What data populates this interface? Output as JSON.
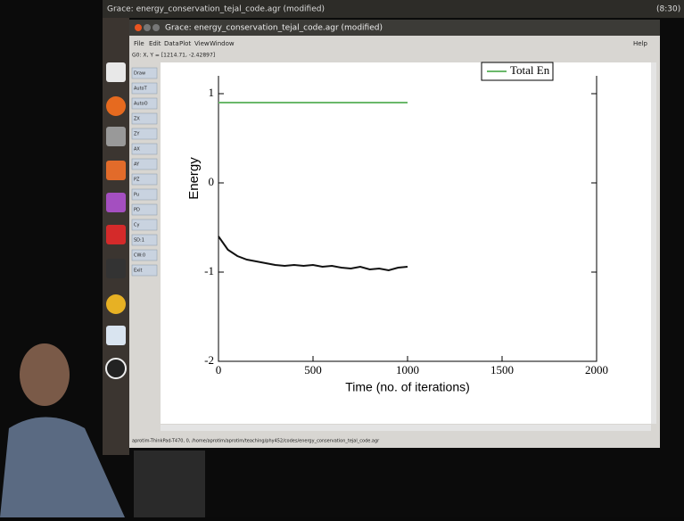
{
  "topbar": {
    "title": "Grace: energy_conservation_tejal_code.agr (modified)",
    "clock": "(8:30)"
  },
  "window": {
    "title": "Grace: energy_conservation_tejal_code.agr (modified)",
    "menu": [
      "File",
      "Edit",
      "Data",
      "Plot",
      "View",
      "Window"
    ],
    "help": "Help",
    "coords": "G0: X, Y = [1214.71, -2.42897]",
    "status": "aprotim-ThinkPad-T470, 0, /home/aprotim/aprotim/teaching/phy452/codes/energy_conservation_tejal_code.agr"
  },
  "toolbar": [
    "Draw",
    "AutoT",
    "AutoO",
    "ZX",
    "ZY",
    "AX",
    "AY",
    "PZ",
    "Pu",
    "PD",
    "Cy",
    "SD:1",
    "CW:0",
    "Exit"
  ],
  "chart_data": {
    "type": "line",
    "xlabel": "Time (no. of iterations)",
    "ylabel": "Energy",
    "xlim": [
      0,
      2000
    ],
    "ylim": [
      -2,
      1.2
    ],
    "xticks": [
      0,
      500,
      1000,
      1500,
      2000
    ],
    "yticks": [
      -2,
      -1,
      0,
      1
    ],
    "legend": "top-right",
    "x": [
      0,
      50,
      100,
      150,
      200,
      250,
      300,
      350,
      400,
      450,
      500,
      550,
      600,
      650,
      700,
      750,
      800,
      850,
      900,
      950,
      1000
    ],
    "series": [
      {
        "name": "Total En",
        "color": "#6ab86a",
        "values": [
          0.9,
          0.9,
          0.9,
          0.9,
          0.9,
          0.9,
          0.9,
          0.9,
          0.9,
          0.9,
          0.9,
          0.9,
          0.9,
          0.9,
          0.9,
          0.9,
          0.9,
          0.9,
          0.9,
          0.9,
          0.9
        ]
      },
      {
        "color": "#111111",
        "values": [
          -0.6,
          -0.75,
          -0.82,
          -0.86,
          -0.88,
          -0.9,
          -0.92,
          -0.93,
          -0.92,
          -0.93,
          -0.92,
          -0.94,
          -0.93,
          -0.95,
          -0.96,
          -0.94,
          -0.97,
          -0.96,
          -0.98,
          -0.95,
          -0.94
        ]
      }
    ]
  }
}
